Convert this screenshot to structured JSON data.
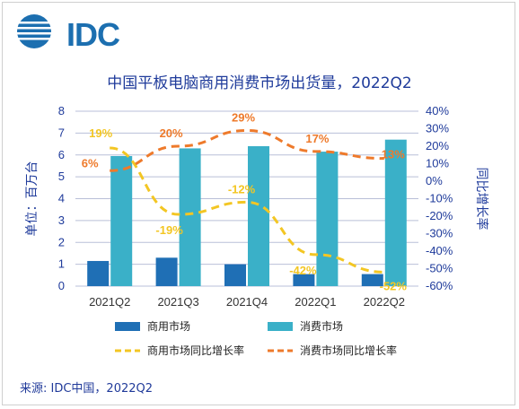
{
  "logo": {
    "text": "IDC"
  },
  "source": "来源: IDC中国，2022Q2",
  "chart_data": {
    "type": "bar",
    "title": "中国平板电脑商用消费市场出货量，2022Q2",
    "categories": [
      "2021Q2",
      "2021Q3",
      "2021Q4",
      "2022Q1",
      "2022Q2"
    ],
    "ylabel": "单位：百万台",
    "y2label": "同比增长率",
    "ylim": [
      0,
      8
    ],
    "y2lim": [
      -60,
      40
    ],
    "yticks": [
      "0",
      "1",
      "2",
      "3",
      "4",
      "5",
      "6",
      "7",
      "8"
    ],
    "y2ticks": [
      "-60%",
      "-50%",
      "-40%",
      "-30%",
      "-20%",
      "-10%",
      "0%",
      "10%",
      "20%",
      "30%",
      "40%"
    ],
    "grid": true,
    "legend_position": "bottom",
    "series": [
      {
        "name": "商用市场",
        "kind": "bar",
        "axis": "left",
        "color": "#1f6fb5",
        "values": [
          1.15,
          1.3,
          1.0,
          0.55,
          0.55
        ]
      },
      {
        "name": "消费市场",
        "kind": "bar",
        "axis": "left",
        "color": "#3ab0c8",
        "values": [
          5.95,
          6.3,
          6.4,
          6.15,
          6.7
        ]
      },
      {
        "name": "商用市场同比增长率",
        "kind": "line",
        "style": "dashed",
        "axis": "right",
        "color": "#f3c623",
        "values": [
          19,
          -19,
          -12,
          -42,
          -52
        ],
        "labels": [
          "19%",
          "-19%",
          "-12%",
          "-42%",
          "-52%"
        ]
      },
      {
        "name": "消费市场同比增长率",
        "kind": "line",
        "style": "dashed",
        "axis": "right",
        "color": "#ee7a2b",
        "values": [
          6,
          20,
          29,
          17,
          13
        ],
        "labels": [
          "6%",
          "20%",
          "29%",
          "17%",
          "13%"
        ]
      }
    ]
  }
}
